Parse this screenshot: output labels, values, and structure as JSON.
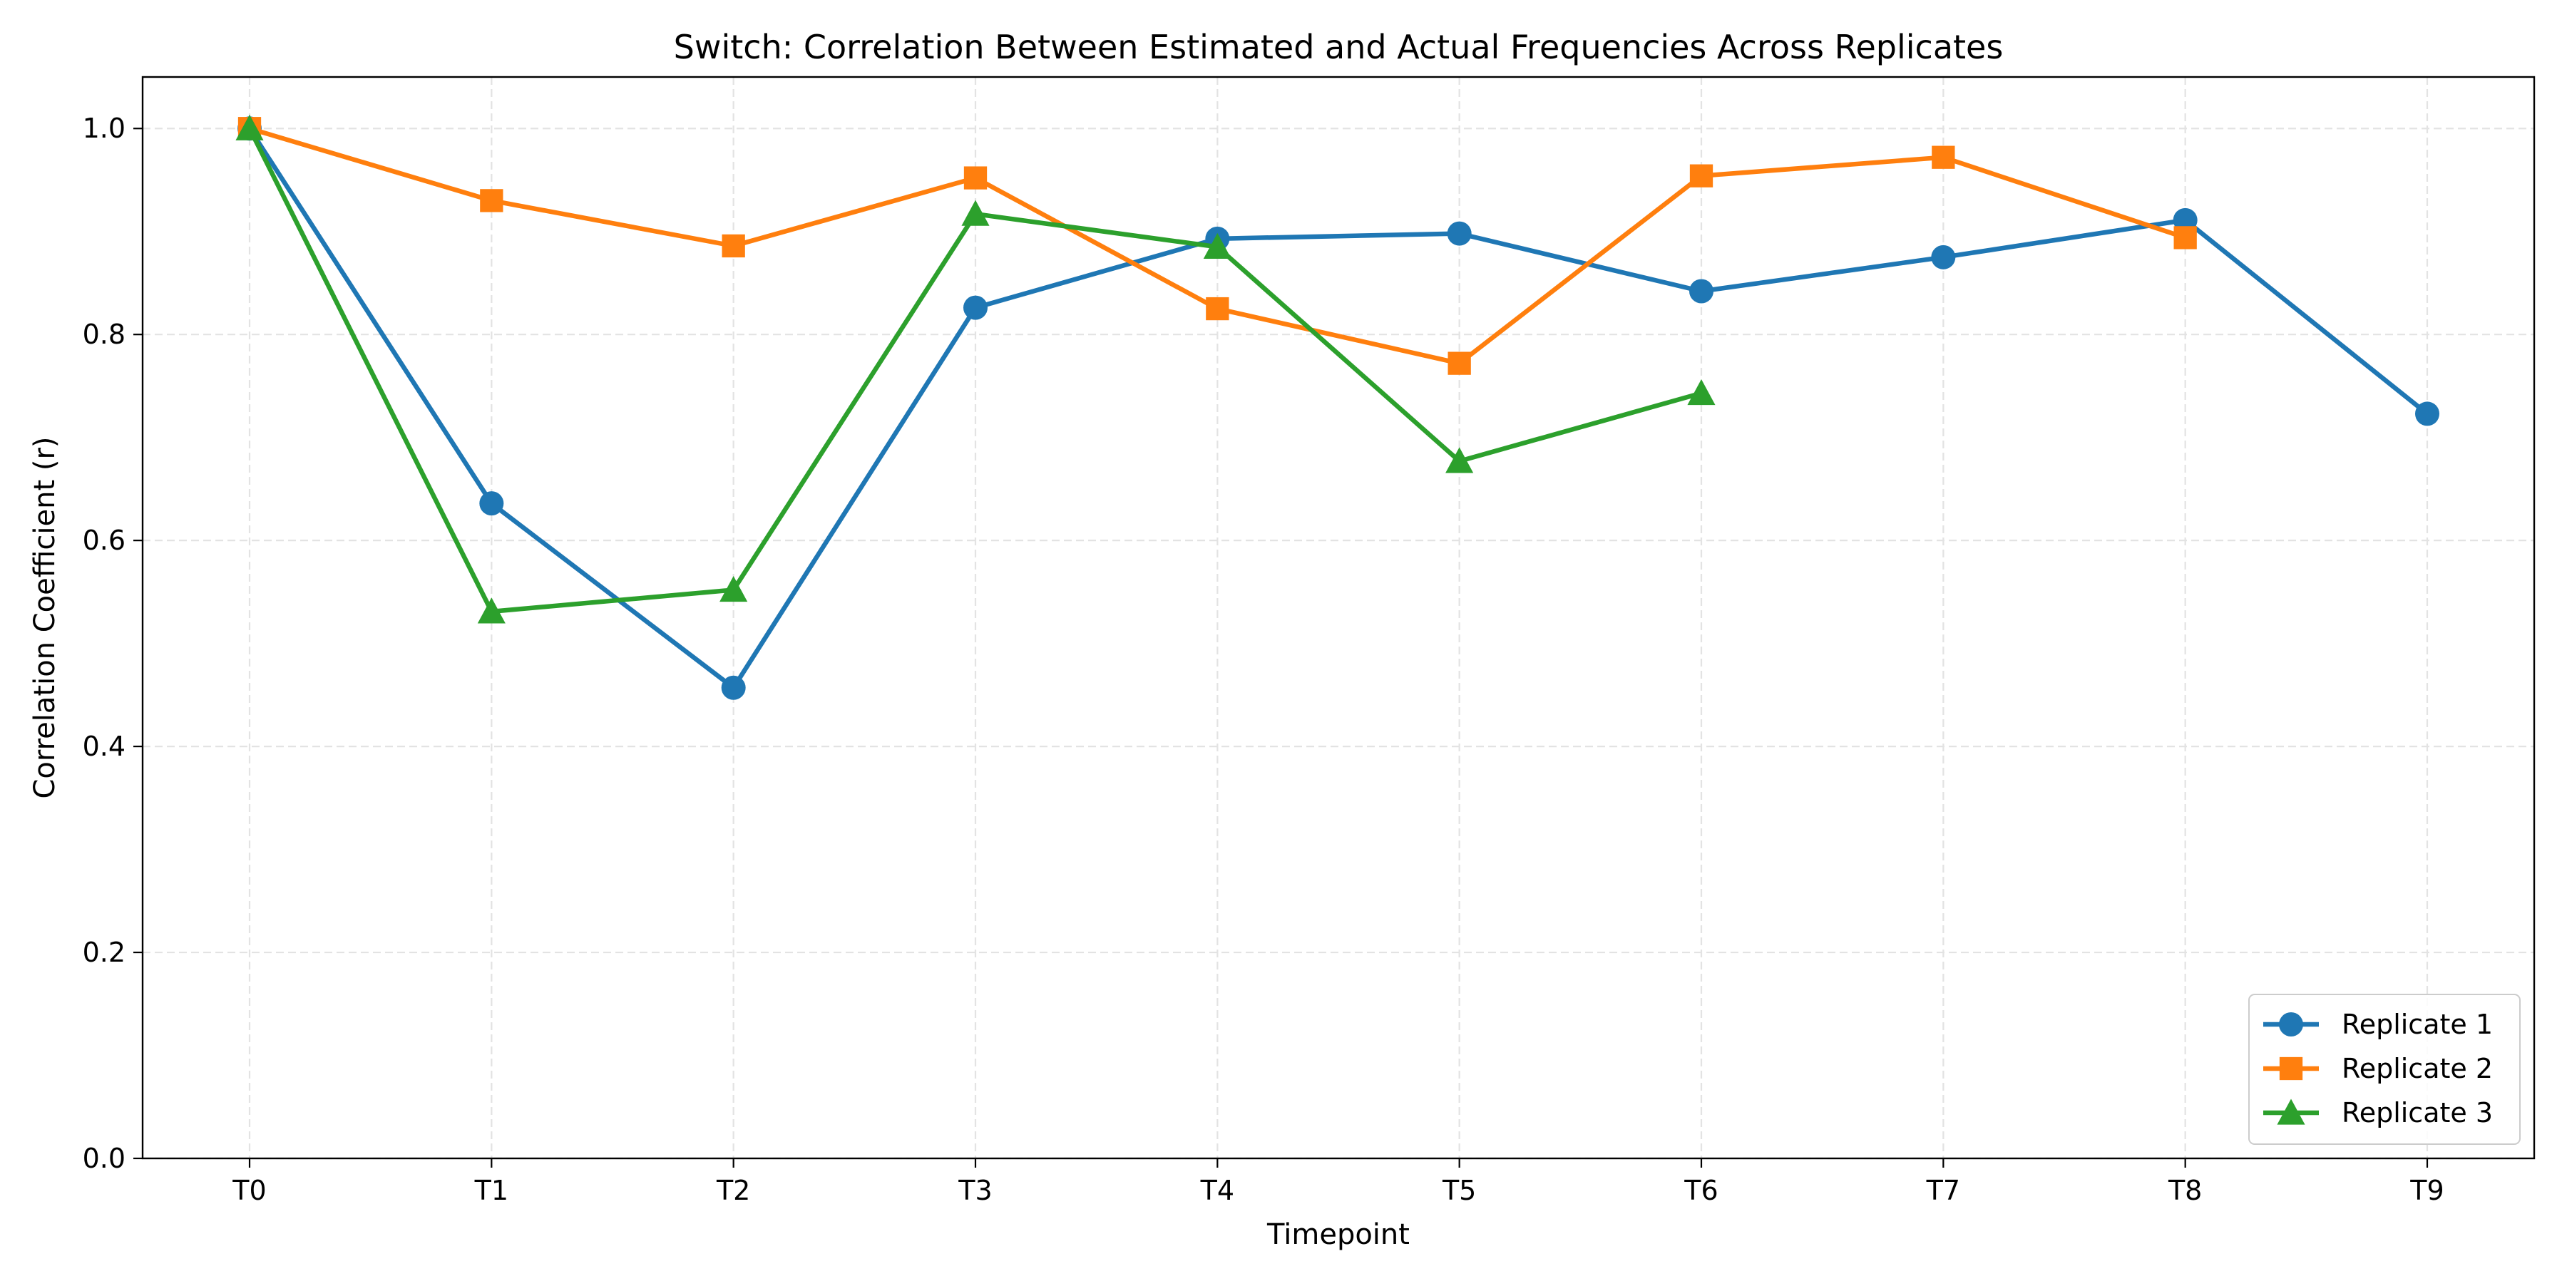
{
  "chart_data": {
    "type": "line",
    "title": "Switch: Correlation Between Estimated and Actual Frequencies Across Replicates",
    "xlabel": "Timepoint",
    "ylabel": "Correlation Coefficient (r)",
    "categories": [
      "T0",
      "T1",
      "T2",
      "T3",
      "T4",
      "T5",
      "T6",
      "T7",
      "T8",
      "T9"
    ],
    "ylim": [
      0,
      1.05
    ],
    "yticks": [
      0.0,
      0.2,
      0.4,
      0.6,
      0.8,
      1.0
    ],
    "ytick_labels": [
      "0.0",
      "0.2",
      "0.4",
      "0.6",
      "0.8",
      "1.0"
    ],
    "grid": true,
    "legend_position": "lower-right",
    "series": [
      {
        "name": "Replicate 1",
        "color": "#1f77b4",
        "marker": "circle",
        "values": [
          1.0,
          0.636,
          0.457,
          0.826,
          0.893,
          0.898,
          0.842,
          0.875,
          0.911,
          0.723
        ]
      },
      {
        "name": "Replicate 2",
        "color": "#ff7f0e",
        "marker": "square",
        "values": [
          1.0,
          0.93,
          0.886,
          0.952,
          0.825,
          0.772,
          0.954,
          0.972,
          0.894,
          null
        ]
      },
      {
        "name": "Replicate 3",
        "color": "#2ca02c",
        "marker": "triangle",
        "values": [
          1.0,
          0.531,
          0.552,
          0.917,
          0.885,
          0.677,
          0.743,
          null,
          null,
          null
        ]
      }
    ]
  }
}
